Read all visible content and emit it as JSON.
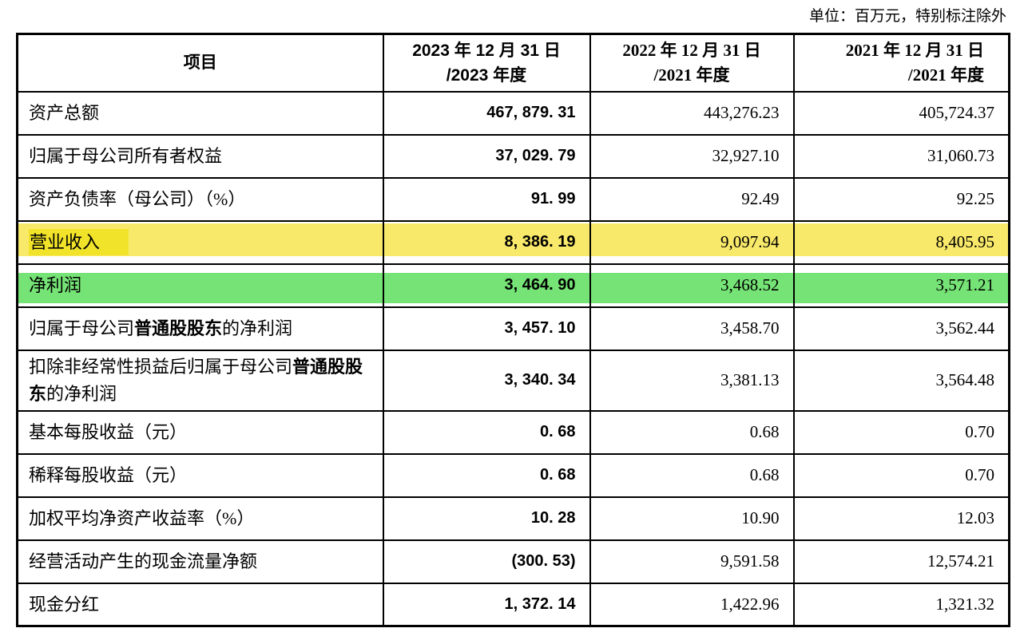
{
  "note": "单位：百万元，特别标注除外",
  "colors": {
    "yellow_band": "#F9E96A",
    "yellow_mark": "#F1E32A",
    "green_band": "#75E375",
    "border": "#000000"
  },
  "table": {
    "headers": {
      "item": "项目",
      "y2023_line1": "2023 年 12 月 31 日",
      "y2023_line2": "/2023 年度",
      "y2022_line1": "2022 年 12 月 31 日",
      "y2022_line2": "/2021 年度",
      "y2021_line1": "2021 年 12 月 31 日",
      "y2021_line2": "/2021 年度"
    },
    "rows": [
      {
        "label": "资产总额",
        "values": [
          "467, 879. 31",
          "443,276.23",
          "405,724.37"
        ]
      },
      {
        "label": "归属于母公司所有者权益",
        "values": [
          "37, 029. 79",
          "32,927.10",
          "31,060.73"
        ]
      },
      {
        "label": "资产负债率（母公司）（%）",
        "values": [
          "91. 99",
          "92.49",
          "92.25"
        ]
      },
      {
        "label": "营业收入",
        "highlight": "yellow",
        "values": [
          "8, 386. 19",
          "9,097.94",
          "8,405.95"
        ]
      },
      {
        "label": "净利润",
        "highlight": "green",
        "values": [
          "3, 464. 90",
          "3,468.52",
          "3,571.21"
        ]
      },
      {
        "label_prefix": "归属于母公司",
        "label_bold": "普通股股东",
        "label_suffix": "的净利润",
        "values": [
          "3, 457. 10",
          "3,458.70",
          "3,562.44"
        ]
      },
      {
        "label_prefix": "扣除非经常性损益后归属于母公司",
        "label_bold": "普通股股东",
        "label_suffix": "的净利润",
        "values": [
          "3, 340. 34",
          "3,381.13",
          "3,564.48"
        ]
      },
      {
        "label": "基本每股收益（元）",
        "values": [
          "0. 68",
          "0.68",
          "0.70"
        ]
      },
      {
        "label": "稀释每股收益（元）",
        "values": [
          "0. 68",
          "0.68",
          "0.70"
        ]
      },
      {
        "label": "加权平均净资产收益率（%）",
        "values": [
          "10. 28",
          "10.90",
          "12.03"
        ]
      },
      {
        "label": "经营活动产生的现金流量净额",
        "values": [
          "(300. 53)",
          "9,591.58",
          "12,574.21"
        ]
      },
      {
        "label": "现金分红",
        "values": [
          "1, 372. 14",
          "1,422.96",
          "1,321.32"
        ]
      }
    ]
  }
}
